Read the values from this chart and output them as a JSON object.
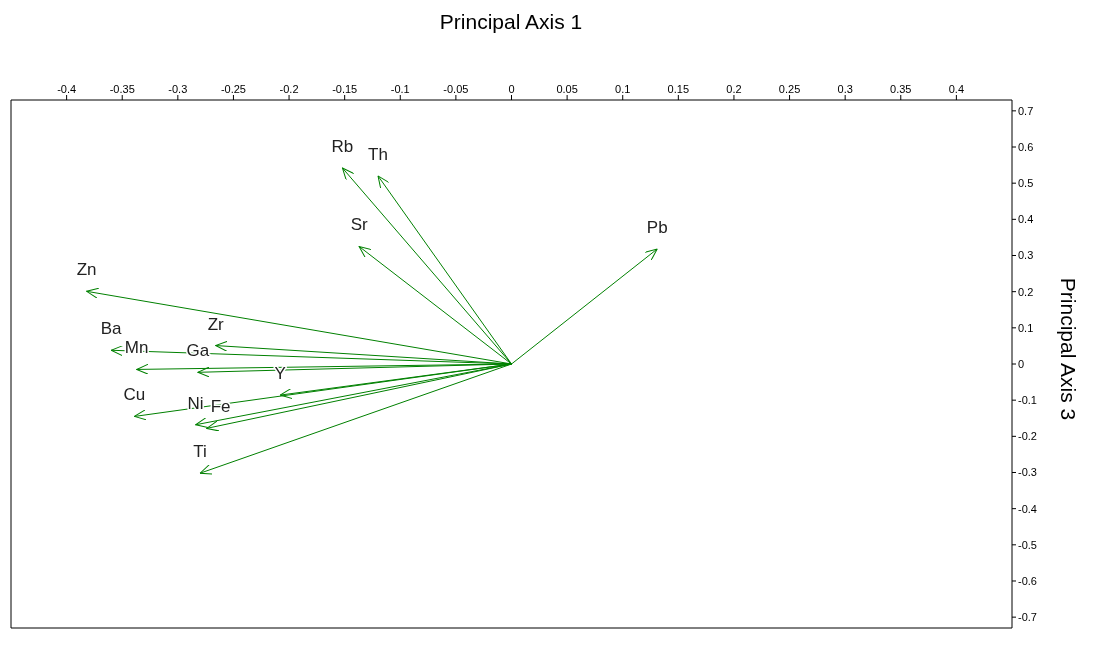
{
  "chart_data": {
    "type": "line",
    "xlabel": "Principal Axis 1",
    "ylabel": "Principal Axis 3",
    "xlim": [
      -0.45,
      0.45
    ],
    "ylim": [
      -0.73,
      0.73
    ],
    "xticks": [
      -0.4,
      -0.35,
      -0.3,
      -0.25,
      -0.2,
      -0.15,
      -0.1,
      -0.05,
      0,
      0.05,
      0.1,
      0.15,
      0.2,
      0.25,
      0.3,
      0.35,
      0.4
    ],
    "yticks": [
      -0.7,
      -0.6,
      -0.5,
      -0.4,
      -0.3,
      -0.2,
      -0.1,
      0,
      0.1,
      0.2,
      0.3,
      0.4,
      0.5,
      0.6,
      0.7
    ],
    "legend": false,
    "grid": false,
    "series": [
      {
        "name": "Rb",
        "color": "#008000",
        "x": [
          0,
          -0.152
        ],
        "values": [
          0,
          0.542
        ]
      },
      {
        "name": "Th",
        "color": "#008000",
        "x": [
          0,
          -0.12
        ],
        "values": [
          0,
          0.52
        ]
      },
      {
        "name": "Sr",
        "color": "#008000",
        "x": [
          0,
          -0.137
        ],
        "values": [
          0,
          0.325
        ]
      },
      {
        "name": "Pb",
        "color": "#008000",
        "x": [
          0,
          0.131
        ],
        "values": [
          0,
          0.318
        ]
      },
      {
        "name": "Zn",
        "color": "#008000",
        "x": [
          0,
          -0.382
        ],
        "values": [
          0,
          0.201
        ]
      },
      {
        "name": "Zr",
        "color": "#008000",
        "x": [
          0,
          -0.266
        ],
        "values": [
          0,
          0.051
        ]
      },
      {
        "name": "Ba",
        "color": "#008000",
        "x": [
          0,
          -0.36
        ],
        "values": [
          0,
          0.038
        ]
      },
      {
        "name": "Mn",
        "color": "#008000",
        "x": [
          0,
          -0.337
        ],
        "values": [
          0,
          -0.015
        ]
      },
      {
        "name": "Ga",
        "color": "#008000",
        "x": [
          0,
          -0.282
        ],
        "values": [
          0,
          -0.023
        ]
      },
      {
        "name": "Y",
        "color": "#008000",
        "x": [
          0,
          -0.208
        ],
        "values": [
          0,
          -0.086
        ]
      },
      {
        "name": "Cu",
        "color": "#008000",
        "x": [
          0,
          -0.339
        ],
        "values": [
          0,
          -0.145
        ]
      },
      {
        "name": "Ni",
        "color": "#008000",
        "x": [
          0,
          -0.284
        ],
        "values": [
          0,
          -0.168
        ]
      },
      {
        "name": "Fe",
        "color": "#008000",
        "x": [
          0,
          -0.274
        ],
        "values": [
          0,
          -0.178
        ]
      },
      {
        "name": "Ti",
        "color": "#008000",
        "x": [
          0,
          -0.28
        ],
        "values": [
          0,
          -0.302
        ]
      }
    ]
  }
}
